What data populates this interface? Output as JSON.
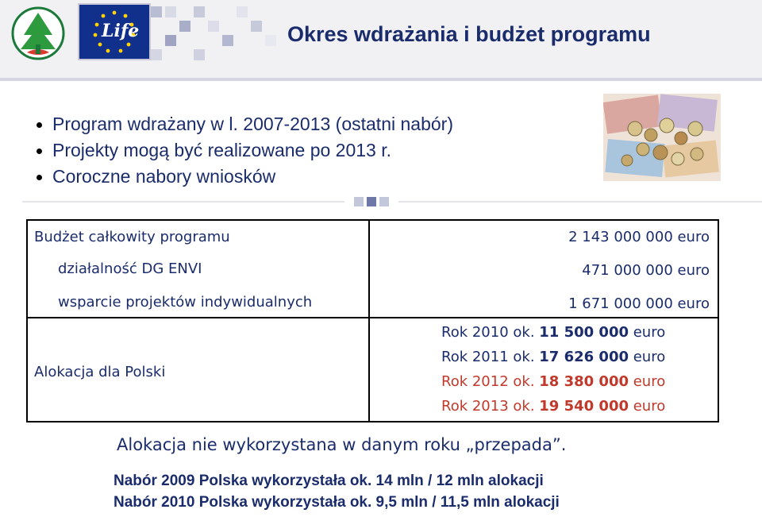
{
  "header": {
    "title": "Okres wdrażania i budżet programu",
    "life_logo_text": "Life"
  },
  "bullets": [
    "Program wdrażany w l. 2007-2013 (ostatni nabór)",
    "Projekty mogą być realizowane po 2013 r.",
    "Coroczne nabory wniosków"
  ],
  "table": {
    "rows": [
      {
        "label": "Budżet całkowity programu",
        "value": "2 143 000 000 euro"
      },
      {
        "label": "działalność DG ENVI",
        "value": "471 000 000 euro"
      },
      {
        "label": "wsparcie projektów indywidualnych",
        "value": "1 671 000 000 euro"
      }
    ],
    "allocation_label": "Alokacja dla Polski",
    "allocations": [
      {
        "year_text": "Rok 2010 ok.",
        "amount": "11 500 000",
        "unit": "euro",
        "color": "#1a2c6b"
      },
      {
        "year_text": "Rok 2011 ok.",
        "amount": "17 626 000",
        "unit": "euro",
        "color": "#1a2c6b"
      },
      {
        "year_text": "Rok 2012 ok.",
        "amount": "18 380 000",
        "unit": "euro",
        "color": "#c0392b"
      },
      {
        "year_text": "Rok 2013 ok.",
        "amount": "19 540 000",
        "unit": "euro",
        "color": "#c0392b"
      }
    ]
  },
  "note": "Alokacja nie wykorzystana w danym roku „przepada”.",
  "nabory": [
    "Nabór 2009 Polska wykorzystała ok. 14 mln / 12 mln alokacji",
    "Nabór 2010 Polska wykorzystała ok. 9,5 mln / 11,5 mln alokacji"
  ],
  "colors": {
    "title_navy": "#1a2c6b",
    "red_amount": "#c0392b",
    "green_text": "#1a2c6b",
    "eu_blue": "#11308c"
  }
}
